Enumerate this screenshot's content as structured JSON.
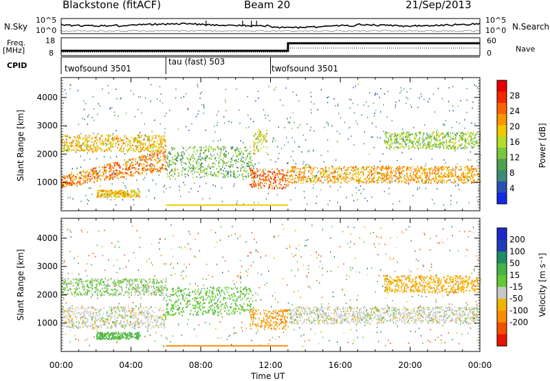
{
  "header": {
    "station": "Blackstone (fitACF)",
    "beam": "Beam 20",
    "date": "21/Sep/2013"
  },
  "left_labels": {
    "nsky": "N.Sky",
    "freq": "Freq.",
    "freq_unit": "[MHz]",
    "cpid": "CPID"
  },
  "right_labels": {
    "nsearch": "N.Search",
    "nave": "Nave"
  },
  "scale_ticks": {
    "noise_top": "10^5",
    "noise_bottom": "10^0",
    "freq_top": "18",
    "freq_bottom": "8",
    "nave_top": "60",
    "nave_bottom": "0"
  },
  "cpid_segments": [
    {
      "label": "twofsound 3501",
      "start_h": 0
    },
    {
      "label": "tau (fast) 503",
      "start_h": 6
    },
    {
      "label": "twofsound 3501",
      "start_h": 12
    }
  ],
  "colors": {
    "power": [
      "#1428e6",
      "#2850b4",
      "#3c8c78",
      "#50a050",
      "#78c83c",
      "#b4dc28",
      "#f0c800",
      "#fa9600",
      "#fa6400",
      "#f02800",
      "#e60000"
    ],
    "velocity_pos": [
      "#1e28c8",
      "#1e3cb4",
      "#1e8c64",
      "#46b446",
      "#64c832"
    ],
    "velocity_neg": [
      "#c8c8c8",
      "#f0b400",
      "#fa8c00",
      "#f05000",
      "#e61400"
    ]
  },
  "chart_data": [
    {
      "type": "heatmap",
      "name": "power",
      "xlabel": "Time UT",
      "ylabel": "Slant Range [km]",
      "x_ticks": [
        "00:00",
        "04:00",
        "08:00",
        "12:00",
        "16:00",
        "20:00",
        "00:00"
      ],
      "xlim_hours": [
        0,
        24
      ],
      "ylim_km": [
        0,
        4700
      ],
      "y_ticks": [
        1000,
        2000,
        3000,
        4000
      ],
      "colorbar_label": "Power [dB]",
      "colorbar_ticks": [
        4,
        8,
        12,
        16,
        20,
        24,
        28
      ],
      "colorbar_range": [
        0,
        32
      ],
      "bands": [
        {
          "t0": 0.0,
          "t1": 6.0,
          "r0": 850,
          "r1": 1250,
          "r1_end": 2200,
          "level": 24
        },
        {
          "t0": 0.0,
          "t1": 6.0,
          "r0": 2100,
          "r1": 2700,
          "level": 20
        },
        {
          "t0": 2.0,
          "t1": 4.5,
          "r0": 500,
          "r1": 750,
          "level": 20
        },
        {
          "t0": 6.0,
          "t1": 11.0,
          "r0": 1200,
          "r1": 2300,
          "level": 12
        },
        {
          "t0": 10.8,
          "t1": 13.0,
          "r0": 800,
          "r1": 1500,
          "level": 26
        },
        {
          "t0": 11.0,
          "t1": 11.8,
          "r0": 2000,
          "r1": 2900,
          "level": 18
        },
        {
          "t0": 13.0,
          "t1": 24.0,
          "r0": 1000,
          "r1": 1600,
          "level": 22
        },
        {
          "t0": 18.5,
          "t1": 24.0,
          "r0": 2200,
          "r1": 2800,
          "level": 14
        }
      ]
    },
    {
      "type": "heatmap",
      "name": "velocity",
      "xlabel": "Time UT",
      "ylabel": "Slant Range [km]",
      "x_ticks": [
        "00:00",
        "04:00",
        "08:00",
        "12:00",
        "16:00",
        "20:00",
        "00:00"
      ],
      "xlim_hours": [
        0,
        24
      ],
      "ylim_km": [
        0,
        4700
      ],
      "y_ticks": [
        1000,
        2000,
        3000,
        4000
      ],
      "colorbar_label": "Velocity [m s⁻¹]",
      "colorbar_ticks": [
        200,
        100,
        50,
        15,
        -15,
        -50,
        -100,
        -200
      ],
      "bands": [
        {
          "t0": 0.0,
          "t1": 6.0,
          "r0": 850,
          "r1": 1600,
          "level": 0
        },
        {
          "t0": 0.0,
          "t1": 6.0,
          "r0": 2000,
          "r1": 2600,
          "level": 20
        },
        {
          "t0": 2.0,
          "t1": 4.5,
          "r0": 450,
          "r1": 700,
          "level": 60
        },
        {
          "t0": 6.0,
          "t1": 11.0,
          "r0": 1300,
          "r1": 2300,
          "level": 40
        },
        {
          "t0": 10.8,
          "t1": 13.0,
          "r0": 800,
          "r1": 1500,
          "level": -60
        },
        {
          "t0": 13.0,
          "t1": 24.0,
          "r0": 1000,
          "r1": 1600,
          "level": 0
        },
        {
          "t0": 18.5,
          "t1": 24.0,
          "r0": 2100,
          "r1": 2700,
          "level": -40
        }
      ]
    }
  ]
}
